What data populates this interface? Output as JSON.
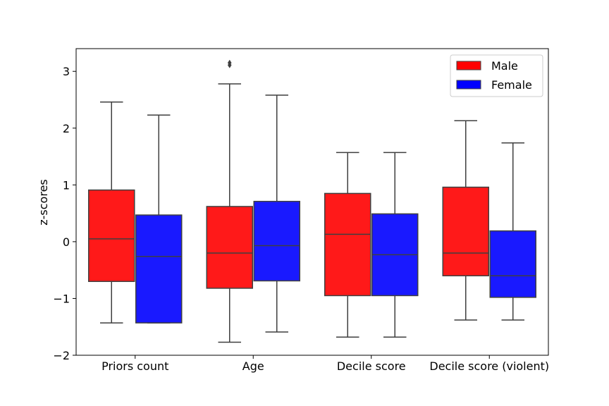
{
  "chart_data": {
    "type": "boxplot",
    "ylabel": "z-scores",
    "ylim": [
      -2.0,
      3.4
    ],
    "yticks": [
      3,
      2,
      1,
      0,
      -1,
      -2
    ],
    "ytick_labels": [
      "3",
      "2",
      "1",
      "0",
      "−1",
      "−2"
    ],
    "categories": [
      "Priors count",
      "Age",
      "Decile score",
      "Decile score (violent)"
    ],
    "legend_position": "top-right",
    "grid": false,
    "series": [
      {
        "name": "Male",
        "color": "#ff0000",
        "boxes": [
          {
            "whislo": -1.43,
            "q1": -0.7,
            "med": 0.05,
            "q3": 0.91,
            "whishi": 2.46,
            "fliers": []
          },
          {
            "whislo": -1.77,
            "q1": -0.82,
            "med": -0.2,
            "q3": 0.62,
            "whishi": 2.78,
            "fliers": [
              3.15,
              3.11
            ]
          },
          {
            "whislo": -1.68,
            "q1": -0.95,
            "med": 0.13,
            "q3": 0.85,
            "whishi": 1.57,
            "fliers": []
          },
          {
            "whislo": -1.38,
            "q1": -0.6,
            "med": -0.2,
            "q3": 0.96,
            "whishi": 2.13,
            "fliers": []
          }
        ]
      },
      {
        "name": "Female",
        "color": "#0000ff",
        "boxes": [
          {
            "whislo": -1.43,
            "q1": -1.43,
            "med": -0.26,
            "q3": 0.47,
            "whishi": 2.23,
            "fliers": []
          },
          {
            "whislo": -1.59,
            "q1": -0.69,
            "med": -0.07,
            "q3": 0.71,
            "whishi": 2.58,
            "fliers": []
          },
          {
            "whislo": -1.68,
            "q1": -0.95,
            "med": -0.23,
            "q3": 0.49,
            "whishi": 1.57,
            "fliers": []
          },
          {
            "whislo": -1.38,
            "q1": -0.98,
            "med": -0.6,
            "q3": 0.19,
            "whishi": 1.74,
            "fliers": []
          }
        ]
      }
    ]
  }
}
